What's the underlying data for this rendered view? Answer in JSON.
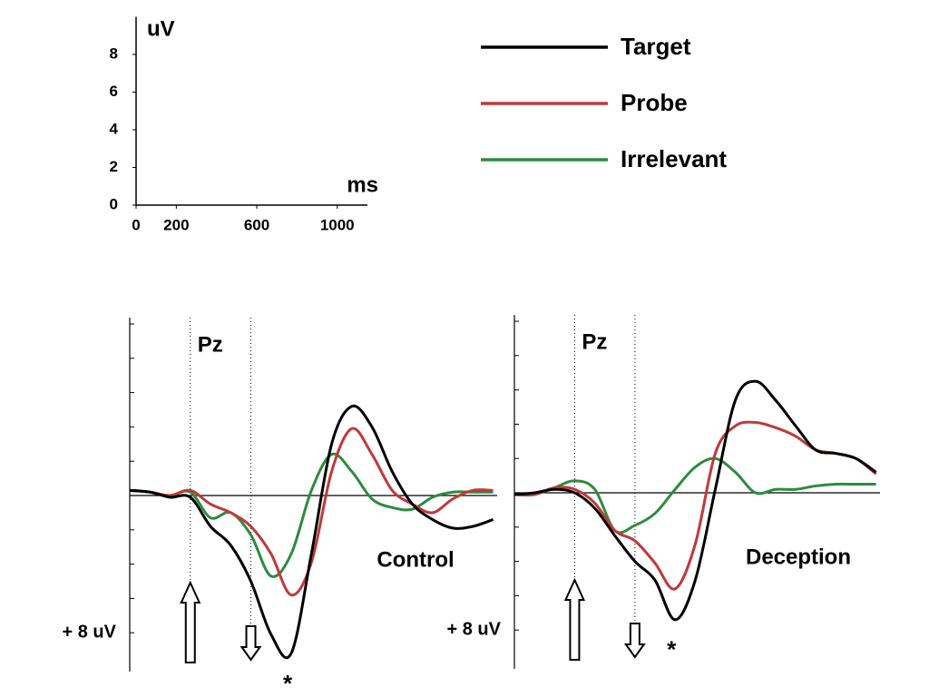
{
  "chart_data": [
    {
      "type": "axes",
      "xlabel": "ms",
      "ylabel": "uV",
      "xlim": [
        0,
        1150
      ],
      "ylim": [
        0,
        10
      ],
      "xticks": [
        0,
        200,
        600,
        1000
      ],
      "yticks": [
        0,
        2,
        4,
        6,
        8
      ]
    },
    {
      "type": "line",
      "title": "Pz",
      "annotation": "Control",
      "star": "*",
      "x": [
        -300,
        -200,
        -100,
        0,
        100,
        200,
        300,
        400,
        500,
        600,
        700,
        800,
        900,
        1000,
        1100,
        1200,
        1300,
        1400,
        1500
      ],
      "xlim": [
        -300,
        1520
      ],
      "ylim": [
        -10,
        10
      ],
      "positive_down": true,
      "yticks": [
        {
          "value": 8,
          "label": "+ 8 uV"
        }
      ],
      "yminor_ticks": [
        -10,
        -8,
        -6,
        -4,
        -2,
        0,
        2,
        4,
        6
      ],
      "markers": [
        0,
        300
      ],
      "series": [
        {
          "name": "Target",
          "color": "#000000",
          "values": [
            -0.3,
            -0.2,
            0.1,
            0.1,
            1.8,
            2.9,
            5.0,
            8.1,
            9.2,
            3.4,
            -3.0,
            -5.2,
            -4.0,
            -1.4,
            0.5,
            1.4,
            1.9,
            1.8,
            1.4
          ]
        },
        {
          "name": "Probe",
          "color": "#c0393b",
          "values": [
            -0.3,
            -0.2,
            0,
            -0.3,
            0.5,
            1.0,
            1.8,
            3.4,
            5.8,
            3.9,
            -1.4,
            -3.9,
            -2.4,
            -0.3,
            0.5,
            1.0,
            0.2,
            -0.3,
            -0.3
          ]
        },
        {
          "name": "Irrelevant",
          "color": "#2e8b3e",
          "values": [
            -0.3,
            -0.2,
            0,
            -0.2,
            1.3,
            1.0,
            2.3,
            4.7,
            3.4,
            -0.3,
            -2.4,
            -1.4,
            0.2,
            0.7,
            0.8,
            0.1,
            -0.2,
            -0.2,
            -0.2
          ]
        }
      ]
    },
    {
      "type": "line",
      "title": "Pz",
      "annotation": "Deception",
      "star": "*",
      "x": [
        -300,
        -200,
        -100,
        0,
        100,
        200,
        300,
        400,
        500,
        600,
        700,
        800,
        900,
        1000,
        1100,
        1200,
        1300,
        1400,
        1500
      ],
      "xlim": [
        -300,
        1520
      ],
      "ylim": [
        -10,
        10
      ],
      "positive_down": true,
      "yticks": [
        {
          "value": 8,
          "label": "+ 8 uV"
        }
      ],
      "yminor_ticks": [
        -10,
        -8,
        -6,
        -4,
        -2,
        0,
        2,
        4,
        6
      ],
      "markers": [
        0,
        300
      ],
      "series": [
        {
          "color": "#000000",
          "values": [
            0.1,
            0,
            -0.2,
            0,
            0.9,
            2.5,
            4.0,
            5.1,
            7.4,
            5.1,
            -0.2,
            -5.4,
            -6.5,
            -5.4,
            -3.9,
            -2.5,
            -2.3,
            -2.0,
            -1.2
          ]
        },
        {
          "color": "#c0393b",
          "values": [
            0.1,
            0.1,
            -0.3,
            -0.2,
            0.6,
            2.2,
            2.8,
            4.1,
            5.6,
            3.0,
            -2.3,
            -3.9,
            -4.1,
            -3.8,
            -3.3,
            -2.5,
            -2.3,
            -2.0,
            -1.1
          ]
        },
        {
          "color": "#2e8b3e",
          "values": [
            0.1,
            0.1,
            -0.3,
            -0.7,
            -0.2,
            2.2,
            1.9,
            1.2,
            -0.2,
            -1.5,
            -2.0,
            -1.2,
            0,
            -0.2,
            -0.2,
            -0.4,
            -0.5,
            -0.5,
            -0.5
          ]
        }
      ]
    }
  ]
}
